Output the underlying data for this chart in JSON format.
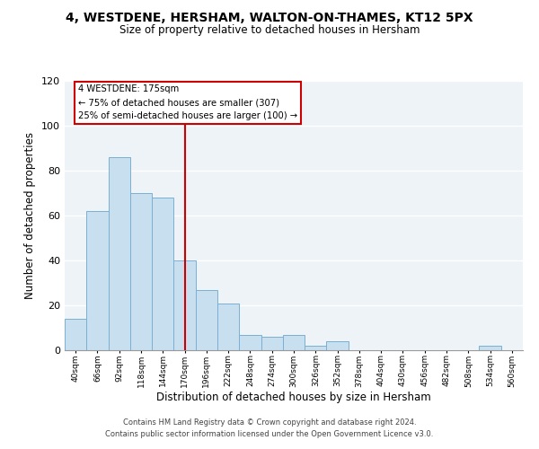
{
  "title": "4, WESTDENE, HERSHAM, WALTON-ON-THAMES, KT12 5PX",
  "subtitle": "Size of property relative to detached houses in Hersham",
  "xlabel": "Distribution of detached houses by size in Hersham",
  "ylabel": "Number of detached properties",
  "bar_color": "#c8dff0",
  "bar_edge_color": "#7ab0d4",
  "background_color": "#eef3f8",
  "grid_color": "#ffffff",
  "annotation_box_color": "#cc0000",
  "vline_color": "#cc0000",
  "vline_x": 5,
  "annotation_title": "4 WESTDENE: 175sqm",
  "annotation_line1": "← 75% of detached houses are smaller (307)",
  "annotation_line2": "25% of semi-detached houses are larger (100) →",
  "categories": [
    "40sqm",
    "66sqm",
    "92sqm",
    "118sqm",
    "144sqm",
    "170sqm",
    "196sqm",
    "222sqm",
    "248sqm",
    "274sqm",
    "300sqm",
    "326sqm",
    "352sqm",
    "378sqm",
    "404sqm",
    "430sqm",
    "456sqm",
    "482sqm",
    "508sqm",
    "534sqm",
    "560sqm"
  ],
  "values": [
    14,
    62,
    86,
    70,
    68,
    40,
    27,
    21,
    7,
    6,
    7,
    2,
    4,
    0,
    0,
    0,
    0,
    0,
    0,
    2,
    0
  ],
  "ylim": [
    0,
    120
  ],
  "yticks": [
    0,
    20,
    40,
    60,
    80,
    100,
    120
  ],
  "footnote1": "Contains HM Land Registry data © Crown copyright and database right 2024.",
  "footnote2": "Contains public sector information licensed under the Open Government Licence v3.0."
}
